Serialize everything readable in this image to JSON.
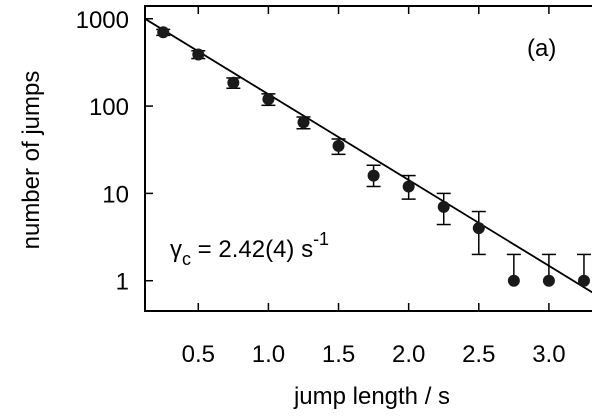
{
  "chart_data": {
    "type": "scatter",
    "panel_label": "(a)",
    "xlabel": "jump length / s",
    "ylabel": "number of jumps",
    "xlim": [
      0.12,
      3.4
    ],
    "ylim": [
      0.45,
      1400
    ],
    "y_scale": "log",
    "x_ticks": [
      0.5,
      1.0,
      1.5,
      2.0,
      2.5,
      3.0
    ],
    "x_tick_labels": [
      "0.5",
      "1.0",
      "1.5",
      "2.0",
      "2.5",
      "3.0"
    ],
    "y_ticks": [
      1,
      10,
      100,
      1000
    ],
    "y_tick_labels": [
      "1",
      "10",
      "100",
      "1000"
    ],
    "annotation": {
      "symbol": "γ",
      "subscript": "c",
      "value": " = 2.42(4) s",
      "superscript": "-1"
    },
    "grid": false,
    "series": [
      {
        "x": [
          0.25,
          0.5,
          0.75,
          1.0,
          1.25,
          1.5,
          1.75,
          2.0,
          2.25,
          2.5,
          2.75,
          3.0,
          3.25
        ],
        "y": [
          700,
          390,
          185,
          120,
          65,
          35,
          16,
          12,
          7,
          4,
          1,
          1,
          1
        ],
        "err_plus": [
          55,
          40,
          25,
          18,
          10,
          7,
          5,
          4,
          3,
          2.2,
          1,
          1,
          1
        ],
        "err_minus": [
          55,
          40,
          25,
          18,
          10,
          7,
          4,
          3.4,
          2.6,
          2,
          0,
          0,
          0
        ],
        "marker_color": "#1a1a1a"
      }
    ],
    "fit": {
      "x": [
        0.12,
        3.4
      ],
      "y": [
        1000,
        0.6
      ],
      "color": "#000000"
    }
  }
}
